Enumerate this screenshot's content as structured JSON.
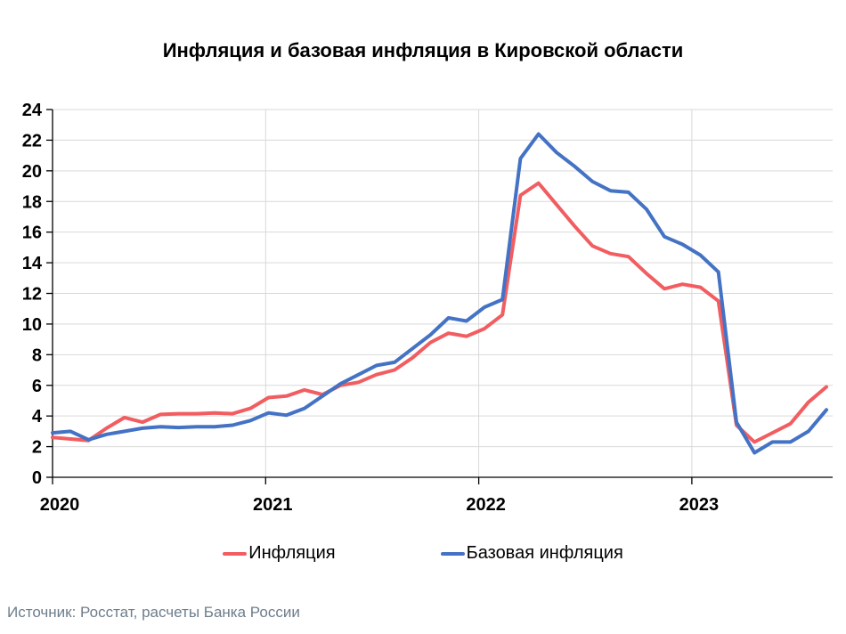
{
  "title": "Инфляция и базовая инфляция в Кировской области",
  "source": "Источник: Росстат, расчеты Банка России",
  "legend": [
    {
      "label": "Инфляция",
      "color": "#F15D60"
    },
    {
      "label": "Базовая инфляция",
      "color": "#4472C4"
    }
  ],
  "colors": {
    "inflation_line": "#F15D60",
    "core_inflation_line": "#4472C4",
    "gridline": "#D9D9D9",
    "axis": "#000000",
    "source_text": "#6d7d8c"
  },
  "chart_data": {
    "type": "line",
    "title": "Инфляция и базовая инфляция в Кировской области",
    "xlabel": "",
    "ylabel": "",
    "ylim": [
      0,
      24
    ],
    "ytick_step": 2,
    "grid": true,
    "legend_position": "bottom",
    "x_unit": "month",
    "x_tick_labels": [
      "2020",
      "2021",
      "2022",
      "2023"
    ],
    "x_tick_month_indices": [
      0,
      12,
      24,
      36
    ],
    "months": [
      "2020-01",
      "2020-02",
      "2020-03",
      "2020-04",
      "2020-05",
      "2020-06",
      "2020-07",
      "2020-08",
      "2020-09",
      "2020-10",
      "2020-11",
      "2020-12",
      "2021-01",
      "2021-02",
      "2021-03",
      "2021-04",
      "2021-05",
      "2021-06",
      "2021-07",
      "2021-08",
      "2021-09",
      "2021-10",
      "2021-11",
      "2021-12",
      "2022-01",
      "2022-02",
      "2022-03",
      "2022-04",
      "2022-05",
      "2022-06",
      "2022-07",
      "2022-08",
      "2022-09",
      "2022-10",
      "2022-11",
      "2022-12",
      "2023-01",
      "2023-02",
      "2023-03",
      "2023-04",
      "2023-05",
      "2023-06",
      "2023-07",
      "2023-08"
    ],
    "series": [
      {
        "name": "Инфляция",
        "color": "#F15D60",
        "values": [
          2.6,
          2.5,
          2.4,
          3.2,
          3.9,
          3.6,
          4.1,
          4.15,
          4.15,
          4.2,
          4.15,
          4.5,
          5.2,
          5.3,
          5.7,
          5.4,
          6.0,
          6.2,
          6.7,
          7.0,
          7.8,
          8.8,
          9.4,
          9.2,
          9.7,
          10.6,
          18.4,
          19.2,
          17.8,
          16.4,
          15.1,
          14.6,
          14.4,
          13.3,
          12.3,
          12.6,
          12.4,
          11.5,
          3.4,
          2.3,
          2.9,
          3.5,
          4.9,
          5.9
        ]
      },
      {
        "name": "Базовая инфляция",
        "color": "#4472C4",
        "values": [
          2.9,
          3.0,
          2.45,
          2.8,
          3.0,
          3.2,
          3.3,
          3.25,
          3.3,
          3.3,
          3.4,
          3.7,
          4.2,
          4.05,
          4.5,
          5.3,
          6.1,
          6.7,
          7.3,
          7.5,
          8.4,
          9.3,
          10.4,
          10.2,
          11.1,
          11.6,
          20.8,
          22.4,
          21.2,
          20.3,
          19.3,
          18.7,
          18.6,
          17.5,
          15.7,
          15.2,
          14.5,
          13.4,
          3.6,
          1.6,
          2.3,
          2.3,
          3.0,
          4.4
        ]
      }
    ]
  }
}
